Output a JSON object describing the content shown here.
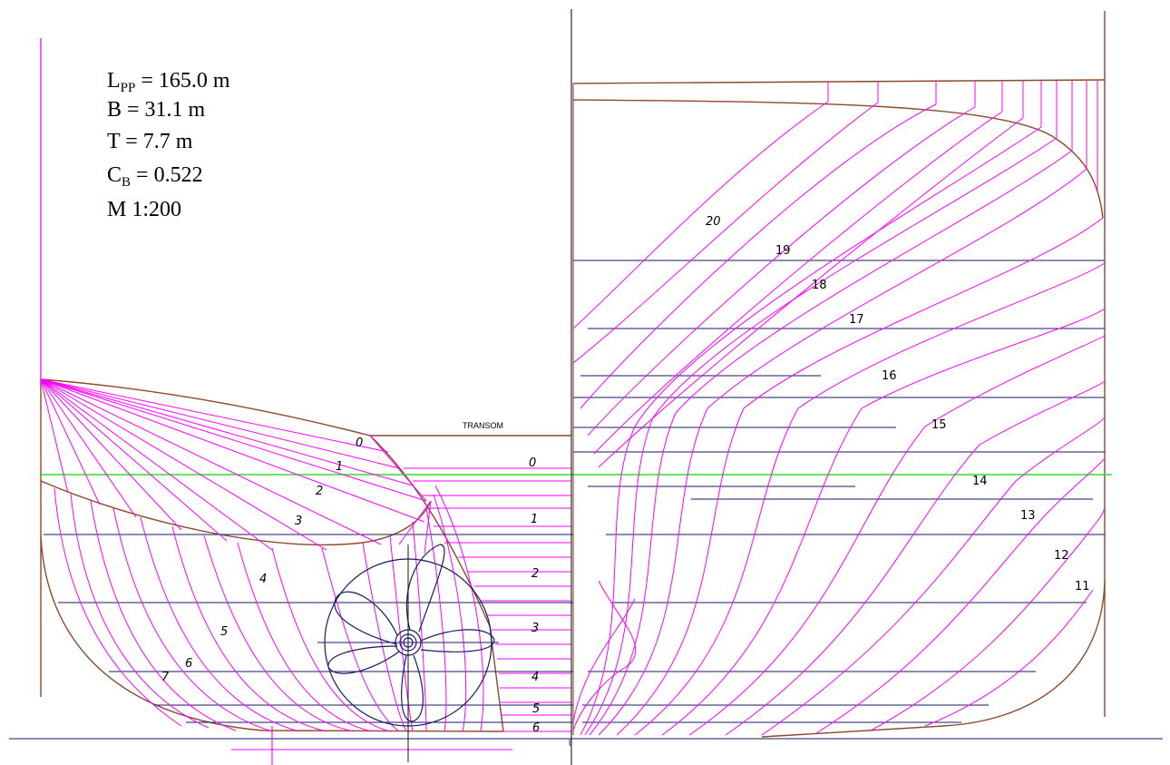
{
  "specs": {
    "lpp": {
      "symbol": "L",
      "sub": "PP",
      "value": " = 165.0 m"
    },
    "b": {
      "text": "B = 31.1 m"
    },
    "t": {
      "text": "T = 7.7 m"
    },
    "cb": {
      "symbol": "C",
      "sub": "B",
      "value": " = 0.522"
    },
    "scale": {
      "text": "M 1:200"
    }
  },
  "labels": {
    "transom": "TRANSOM",
    "aft_sections": [
      "0",
      "1",
      "2",
      "3",
      "4",
      "5",
      "6",
      "7"
    ],
    "waterline_numbers": [
      "0",
      "1",
      "2",
      "3",
      "4",
      "5",
      "6"
    ],
    "fore_sections": [
      "11",
      "12",
      "13",
      "14",
      "15",
      "16",
      "17",
      "18",
      "19",
      "20"
    ]
  },
  "colors": {
    "section_lines": "#ff00ff",
    "waterlines": "#1a1a66",
    "design_waterline": "#33dd33",
    "hull_outline": "#8b4a2b",
    "propeller": "#1a1a66",
    "centerline": "#000000"
  }
}
